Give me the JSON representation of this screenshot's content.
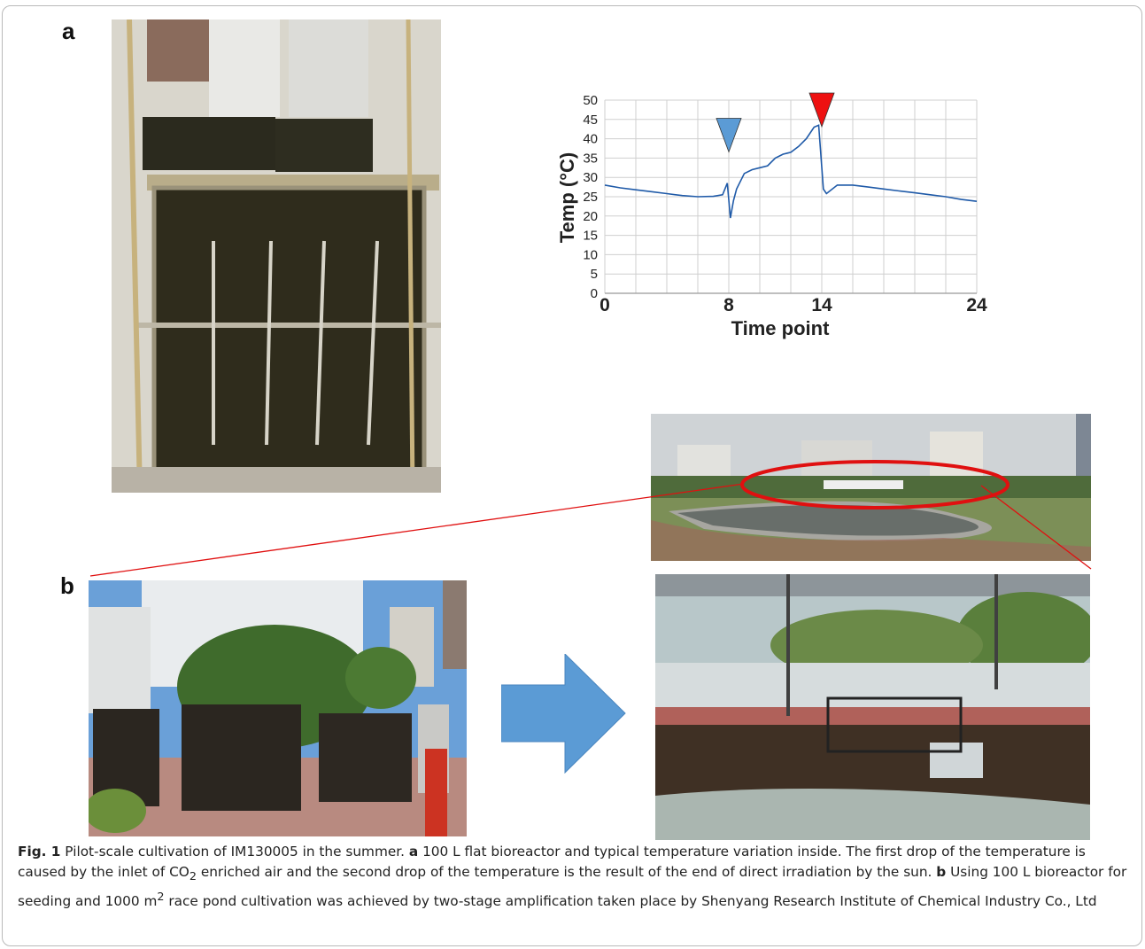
{
  "panels": {
    "a": "a",
    "b": "b"
  },
  "icons": {
    "blue_marker": "blue-triangle-marker",
    "red_marker": "red-triangle-marker",
    "arrow": "right-arrow",
    "highlight": "red-ellipse"
  },
  "colors": {
    "line": "#1f5aa8",
    "grid": "#cfcfcf",
    "blue_marker": "#5b9bd5",
    "red_marker": "#ee1111",
    "arrow": "#5b9bd5",
    "highlight": "#e01010"
  },
  "chart_data": {
    "type": "line",
    "title": "",
    "xlabel": "Time point",
    "ylabel": "Temp (°C)",
    "xlim": [
      0,
      24
    ],
    "ylim": [
      0,
      50
    ],
    "x_ticks": [
      0,
      8,
      14,
      24
    ],
    "y_ticks": [
      0,
      5,
      10,
      15,
      20,
      25,
      30,
      35,
      40,
      45,
      50
    ],
    "grid": true,
    "series": [
      {
        "x": [
          0,
          1,
          2,
          3,
          4,
          5,
          6,
          7,
          7.6,
          7.9,
          8.1,
          8.3,
          8.5,
          9,
          9.5,
          10,
          10.5,
          11,
          11.5,
          12,
          12.5,
          13,
          13.5,
          13.8,
          14.1,
          14.3,
          15,
          16,
          17,
          18,
          19,
          20,
          21,
          22,
          23,
          24
        ],
        "y": [
          28,
          27.3,
          26.8,
          26.3,
          25.8,
          25.3,
          25,
          25.1,
          25.5,
          28.5,
          19.5,
          24,
          27,
          31,
          32,
          32.5,
          33,
          35,
          36,
          36.5,
          38,
          40,
          43,
          43.5,
          27,
          25.8,
          28,
          28,
          27.5,
          27,
          26.5,
          26,
          25.5,
          25,
          24.3,
          23.8
        ]
      }
    ],
    "annotations": [
      {
        "type": "marker",
        "name": "first temperature drop",
        "x": 8,
        "color": "#5b9bd5"
      },
      {
        "type": "marker",
        "name": "second temperature drop",
        "x": 14,
        "color": "#ee1111"
      }
    ]
  },
  "caption": {
    "label": "Fig. 1",
    "p1": "  Pilot-scale cultivation of IM130005 in the summer. ",
    "a": "a",
    "p2": " 100 L flat bioreactor and typical temperature variation inside. The first drop of the temperature is caused by the inlet of CO",
    "sub2": "2",
    "p3": " enriched air and the second drop of the temperature is the result of the end of direct irradiation by the sun. ",
    "b": "b",
    "p4": " Using 100 L bioreactor for seeding and 1000 m",
    "sup2": "2",
    "p5": " race pond cultivation was achieved by two-stage amplification taken place by Shenyang Research Institute of Chemical Industry Co., Ltd"
  }
}
